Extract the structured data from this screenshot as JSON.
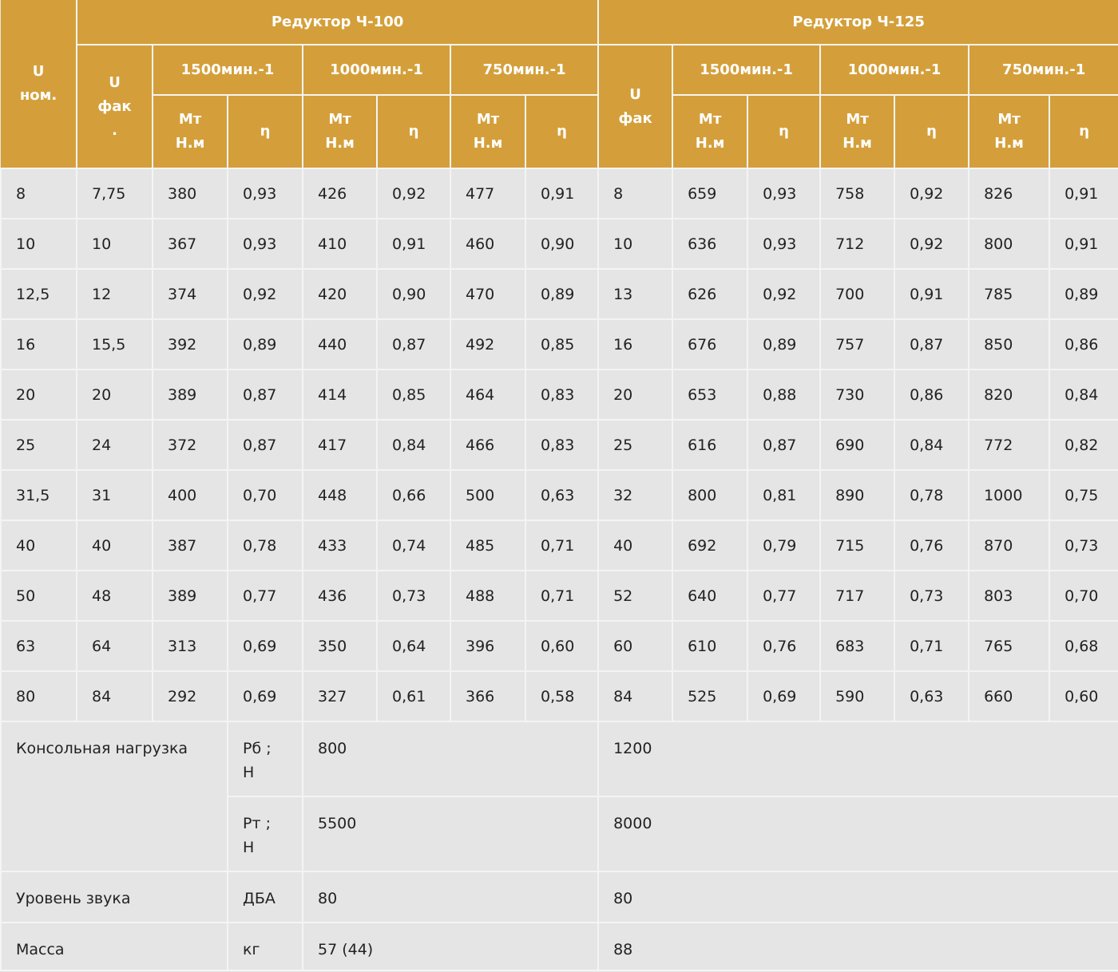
{
  "header": {
    "u_nom": "U\nном.",
    "group1": "Редуктор Ч-100",
    "group2": "Редуктор Ч-125",
    "u_fak1": "U\nфак\n.",
    "u_fak2": "U\nфак",
    "speeds": [
      "1500мин.-1",
      "1000мин.-1",
      "750мин.-1"
    ],
    "mt": "Мт\nН.м",
    "eta": "η"
  },
  "colors": {
    "header_bg": "#d49f3a",
    "body_bg": "#e5e5e5",
    "text": "#222222"
  },
  "rows": [
    [
      "8",
      "7,75",
      "380",
      "0,93",
      "426",
      "0,92",
      "477",
      "0,91",
      "8",
      "659",
      "0,93",
      "758",
      "0,92",
      "826",
      "0,91"
    ],
    [
      "10",
      "10",
      "367",
      "0,93",
      "410",
      "0,91",
      "460",
      "0,90",
      "10",
      "636",
      "0,93",
      "712",
      "0,92",
      "800",
      "0,91"
    ],
    [
      "12,5",
      "12",
      "374",
      "0,92",
      "420",
      "0,90",
      "470",
      "0,89",
      "13",
      "626",
      "0,92",
      "700",
      "0,91",
      "785",
      "0,89"
    ],
    [
      "16",
      "15,5",
      "392",
      "0,89",
      "440",
      "0,87",
      "492",
      "0,85",
      "16",
      "676",
      "0,89",
      "757",
      "0,87",
      "850",
      "0,86"
    ],
    [
      "20",
      "20",
      "389",
      "0,87",
      "414",
      "0,85",
      "464",
      "0,83",
      "20",
      "653",
      "0,88",
      "730",
      "0,86",
      "820",
      "0,84"
    ],
    [
      "25",
      "24",
      "372",
      "0,87",
      "417",
      "0,84",
      "466",
      "0,83",
      "25",
      "616",
      "0,87",
      "690",
      "0,84",
      "772",
      "0,82"
    ],
    [
      "31,5",
      "31",
      "400",
      "0,70",
      "448",
      "0,66",
      "500",
      "0,63",
      "32",
      "800",
      "0,81",
      "890",
      "0,78",
      "1000",
      "0,75"
    ],
    [
      "40",
      "40",
      "387",
      "0,78",
      "433",
      "0,74",
      "485",
      "0,71",
      "40",
      "692",
      "0,79",
      "715",
      "0,76",
      "870",
      "0,73"
    ],
    [
      "50",
      "48",
      "389",
      "0,77",
      "436",
      "0,73",
      "488",
      "0,71",
      "52",
      "640",
      "0,77",
      "717",
      "0,73",
      "803",
      "0,70"
    ],
    [
      "63",
      "64",
      "313",
      "0,69",
      "350",
      "0,64",
      "396",
      "0,60",
      "60",
      "610",
      "0,76",
      "683",
      "0,71",
      "765",
      "0,68"
    ],
    [
      "80",
      "84",
      "292",
      "0,69",
      "327",
      "0,61",
      "366",
      "0,58",
      "84",
      "525",
      "0,69",
      "590",
      "0,63",
      "660",
      "0,60"
    ]
  ],
  "footer": {
    "console_load": {
      "label": "Консольная нагрузка",
      "rb": {
        "unit": "Рб ;\nН",
        "ch100": "800",
        "ch125": "1200"
      },
      "rt": {
        "unit": "Рт ;\nН",
        "ch100": "5500",
        "ch125": "8000"
      }
    },
    "sound": {
      "label": "Уровень звука",
      "unit": "ДБА",
      "ch100": "80",
      "ch125": "80"
    },
    "mass": {
      "label": "Масса",
      "unit": "кг",
      "ch100": "57 (44)",
      "ch125": "88"
    }
  }
}
